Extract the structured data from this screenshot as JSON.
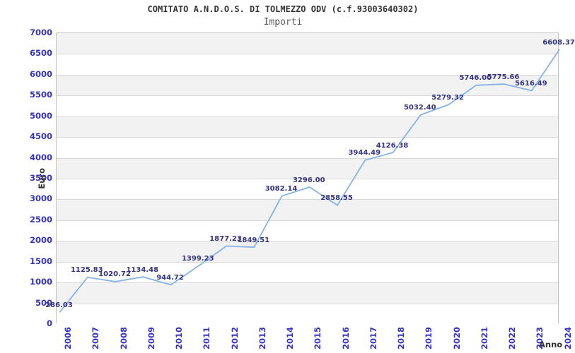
{
  "chart_data": {
    "type": "line",
    "title": "COMITATO A.N.D.O.S. DI TOLMEZZO ODV (c.f.93003640302)",
    "subtitle": "Importi",
    "xlabel": "Anno",
    "ylabel": "Euro",
    "categories": [
      "2006",
      "2007",
      "2008",
      "2009",
      "2010",
      "2011",
      "2012",
      "2013",
      "2014",
      "2015",
      "2016",
      "2017",
      "2018",
      "2019",
      "2020",
      "2021",
      "2022",
      "2023",
      "2024"
    ],
    "values": [
      286.03,
      1125.83,
      1020.72,
      1134.48,
      944.72,
      1399.23,
      1877.23,
      1849.51,
      3082.14,
      3296.0,
      2858.55,
      3944.49,
      4126.38,
      5032.4,
      5279.32,
      5746.0,
      5775.66,
      5616.49,
      6608.37
    ],
    "value_labels": [
      "286.03",
      "1125.83",
      "1020.72",
      "1134.48",
      "944.72",
      "1399.23",
      "1877.23",
      "1849.51",
      "3082.14",
      "3296.00",
      "2858.55",
      "3944.49",
      "4126.38",
      "5032.40",
      "5279.32",
      "5746.00",
      "5775.66",
      "5616.49",
      "6608.37"
    ],
    "ylim": [
      0,
      7000
    ],
    "ytick_step": 500,
    "grid": true,
    "legend": false,
    "layout": {
      "bands_alternating": true,
      "x_tick_rotation": 90
    },
    "colors": {
      "line": "#85b3e8",
      "tick_label": "#3333cc",
      "value_label": "#333380",
      "band": "#f2f2f2",
      "gridline": "#d8d8d8",
      "plot_border": "#c4c4c4",
      "title": "#333333",
      "subtitle": "#595959",
      "axis_label": "#333333"
    }
  }
}
